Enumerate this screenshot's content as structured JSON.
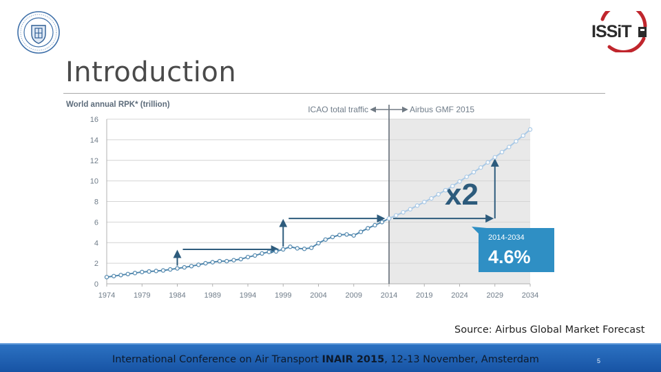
{
  "slide": {
    "title": "Introduction",
    "source": "Source: Airbus Global Market Forecast",
    "footer": {
      "prefix": "International Conference on Air Transport ",
      "bold": "INAIR 2015",
      "suffix": ", 12-13 November, Amsterdam"
    },
    "page_number": "5",
    "logo_right_text": "ISSiT"
  },
  "chart_data": {
    "type": "line",
    "title": "World annual RPK* (trillion)",
    "ylabel": "World annual RPK* (trillion)",
    "xlabel": "",
    "xlim": [
      1974,
      2034
    ],
    "ylim": [
      0,
      16
    ],
    "y_ticks": [
      0,
      2,
      4,
      6,
      8,
      10,
      12,
      14,
      16
    ],
    "x_ticks": [
      1974,
      1979,
      1984,
      1989,
      1994,
      1999,
      2004,
      2009,
      2014,
      2019,
      2024,
      2029,
      2034
    ],
    "grid": true,
    "divider_year": 2014,
    "left_header": "ICAO total traffic",
    "right_header": "Airbus GMF 2015",
    "multiplier_label": "x2",
    "growth_period": "2014-2034",
    "growth_rate": "4.6%",
    "colors": {
      "historical": "#4f86ad",
      "forecast": "#a9c9e6",
      "forecast_fill": "#e9e9e9",
      "callout": "#2f8fc4",
      "arrow": "#2d5b7c"
    },
    "series": [
      {
        "name": "ICAO total traffic",
        "x": [
          1974,
          1975,
          1976,
          1977,
          1978,
          1979,
          1980,
          1981,
          1982,
          1983,
          1984,
          1985,
          1986,
          1987,
          1988,
          1989,
          1990,
          1991,
          1992,
          1993,
          1994,
          1995,
          1996,
          1997,
          1998,
          1999,
          2000,
          2001,
          2002,
          2003,
          2004,
          2005,
          2006,
          2007,
          2008,
          2009,
          2010,
          2011,
          2012,
          2013,
          2014
        ],
        "values": [
          0.65,
          0.75,
          0.85,
          0.95,
          1.05,
          1.15,
          1.2,
          1.25,
          1.3,
          1.4,
          1.5,
          1.6,
          1.72,
          1.85,
          2.0,
          2.1,
          2.2,
          2.2,
          2.3,
          2.4,
          2.6,
          2.75,
          2.95,
          3.1,
          3.15,
          3.35,
          3.6,
          3.45,
          3.4,
          3.5,
          3.95,
          4.3,
          4.55,
          4.75,
          4.8,
          4.7,
          5.05,
          5.4,
          5.7,
          6.0,
          6.35
        ]
      },
      {
        "name": "Airbus GMF 2015",
        "x": [
          2014,
          2015,
          2016,
          2017,
          2018,
          2019,
          2020,
          2021,
          2022,
          2023,
          2024,
          2025,
          2026,
          2027,
          2028,
          2029,
          2030,
          2031,
          2032,
          2033,
          2034
        ],
        "values": [
          6.35,
          6.65,
          6.95,
          7.25,
          7.6,
          7.95,
          8.3,
          8.7,
          9.1,
          9.5,
          9.95,
          10.4,
          10.85,
          11.3,
          11.8,
          12.3,
          12.8,
          13.3,
          13.85,
          14.4,
          15.0
        ]
      }
    ],
    "marker_steps": [
      1984,
      1999,
      2014
    ]
  }
}
